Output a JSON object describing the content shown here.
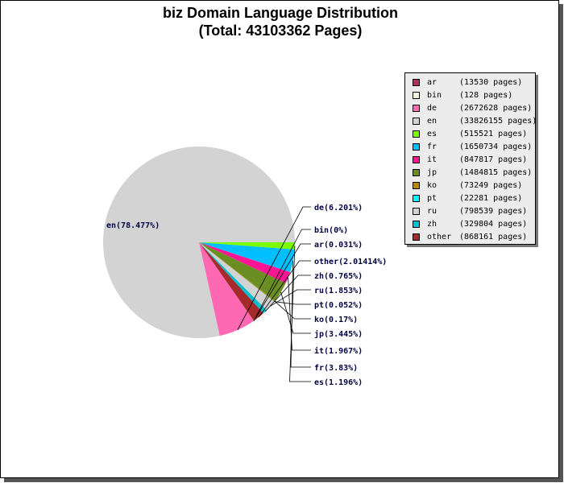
{
  "chart_data": {
    "type": "pie",
    "title": "biz Domain Language Distribution",
    "subtitle": "(Total: 43103362 Pages)",
    "slices": [
      {
        "code": "en",
        "pages": "33826155",
        "percent_label": "en(78.477%)",
        "value": 78.477,
        "color": "#d3d3d3"
      },
      {
        "code": "de",
        "pages": "2672628",
        "percent_label": "de(6.201%)",
        "value": 6.201,
        "color": "#ff69b4"
      },
      {
        "code": "bin",
        "pages": "128",
        "percent_label": "bin(0%)",
        "value": 0.0003,
        "color": "#f5f5dc"
      },
      {
        "code": "ar",
        "pages": "13530",
        "percent_label": "ar(0.031%)",
        "value": 0.031,
        "color": "#b03060"
      },
      {
        "code": "other",
        "pages": "868161",
        "percent_label": "other(2.01414%)",
        "value": 2.01414,
        "color": "#a52a2a"
      },
      {
        "code": "zh",
        "pages": "329804",
        "percent_label": "zh(0.765%)",
        "value": 0.765,
        "color": "#00bfcf"
      },
      {
        "code": "ru",
        "pages": "798539",
        "percent_label": "ru(1.853%)",
        "value": 1.853,
        "color": "#d3d3d3"
      },
      {
        "code": "pt",
        "pages": "22281",
        "percent_label": "pt(0.052%)",
        "value": 0.052,
        "color": "#00ffff"
      },
      {
        "code": "ko",
        "pages": "73249",
        "percent_label": "ko(0.17%)",
        "value": 0.17,
        "color": "#b8860b"
      },
      {
        "code": "jp",
        "pages": "1484815",
        "percent_label": "jp(3.445%)",
        "value": 3.445,
        "color": "#6b8e23"
      },
      {
        "code": "it",
        "pages": "847817",
        "percent_label": "it(1.967%)",
        "value": 1.967,
        "color": "#ff1493"
      },
      {
        "code": "fr",
        "pages": "1650734",
        "percent_label": "fr(3.83%)",
        "value": 3.83,
        "color": "#00bfff"
      },
      {
        "code": "es",
        "pages": "515521",
        "percent_label": "es(1.196%)",
        "value": 1.196,
        "color": "#7cfc00"
      }
    ],
    "legend_order": [
      "ar",
      "bin",
      "de",
      "en",
      "es",
      "fr",
      "it",
      "jp",
      "ko",
      "pt",
      "ru",
      "zh",
      "other"
    ],
    "legend_placement": "top-right"
  }
}
